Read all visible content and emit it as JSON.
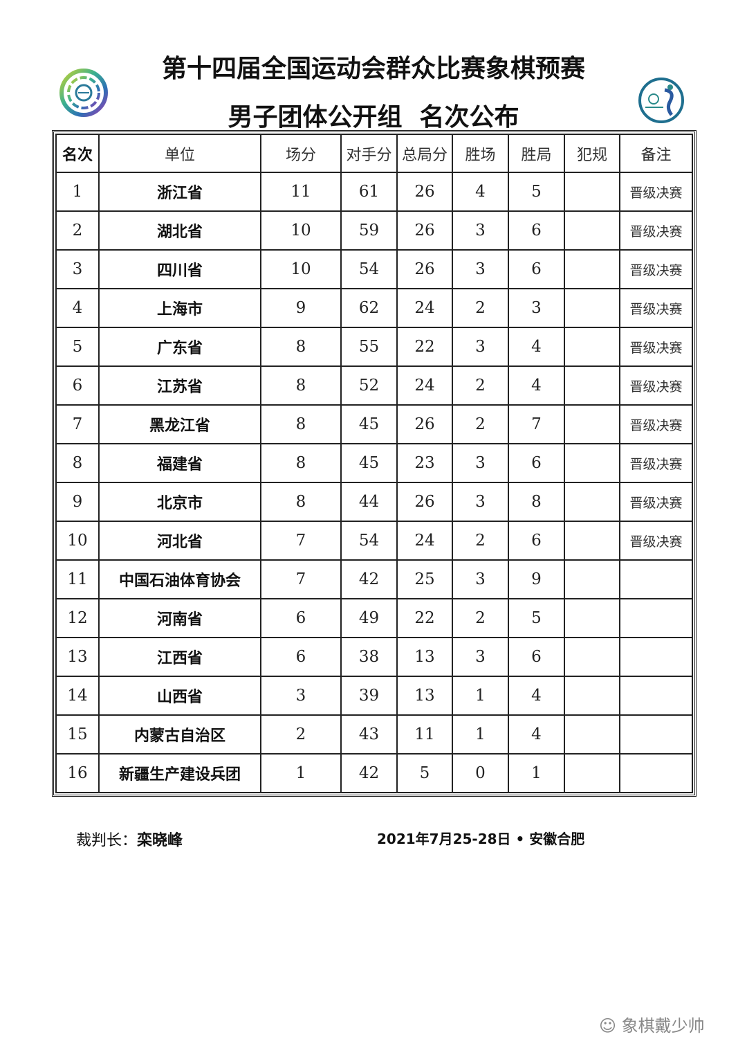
{
  "header": {
    "title": "第十四届全国运动会群众比赛象棋预赛",
    "subtitle": "男子团体公开组  名次公布",
    "logos": [
      "national-games-logo",
      "chess-association-logo"
    ]
  },
  "table": {
    "columns": [
      "名次",
      "单位",
      "场分",
      "对手分",
      "总局分",
      "胜场",
      "胜局",
      "犯规",
      "备注"
    ],
    "rows": [
      [
        "1",
        "浙江省",
        "11",
        "61",
        "26",
        "4",
        "5",
        "",
        "晋级决赛"
      ],
      [
        "2",
        "湖北省",
        "10",
        "59",
        "26",
        "3",
        "6",
        "",
        "晋级决赛"
      ],
      [
        "3",
        "四川省",
        "10",
        "54",
        "26",
        "3",
        "6",
        "",
        "晋级决赛"
      ],
      [
        "4",
        "上海市",
        "9",
        "62",
        "24",
        "2",
        "3",
        "",
        "晋级决赛"
      ],
      [
        "5",
        "广东省",
        "8",
        "55",
        "22",
        "3",
        "4",
        "",
        "晋级决赛"
      ],
      [
        "6",
        "江苏省",
        "8",
        "52",
        "24",
        "2",
        "4",
        "",
        "晋级决赛"
      ],
      [
        "7",
        "黑龙江省",
        "8",
        "45",
        "26",
        "2",
        "7",
        "",
        "晋级决赛"
      ],
      [
        "8",
        "福建省",
        "8",
        "45",
        "23",
        "3",
        "6",
        "",
        "晋级决赛"
      ],
      [
        "9",
        "北京市",
        "8",
        "44",
        "26",
        "3",
        "8",
        "",
        "晋级决赛"
      ],
      [
        "10",
        "河北省",
        "7",
        "54",
        "24",
        "2",
        "6",
        "",
        "晋级决赛"
      ],
      [
        "11",
        "中国石油体育协会",
        "7",
        "42",
        "25",
        "3",
        "9",
        "",
        ""
      ],
      [
        "12",
        "河南省",
        "6",
        "49",
        "22",
        "2",
        "5",
        "",
        ""
      ],
      [
        "13",
        "江西省",
        "6",
        "38",
        "13",
        "3",
        "6",
        "",
        ""
      ],
      [
        "14",
        "山西省",
        "3",
        "39",
        "13",
        "1",
        "4",
        "",
        ""
      ],
      [
        "15",
        "内蒙古自治区",
        "2",
        "43",
        "11",
        "1",
        "4",
        "",
        ""
      ],
      [
        "16",
        "新疆生产建设兵团",
        "1",
        "42",
        "5",
        "0",
        "1",
        "",
        ""
      ]
    ]
  },
  "footer": {
    "referee_label": "裁判长：",
    "referee_name": "栾晓峰",
    "date_place": "2021年7月25-28日 • 安徽合肥"
  },
  "watermark": "象棋戴少帅"
}
